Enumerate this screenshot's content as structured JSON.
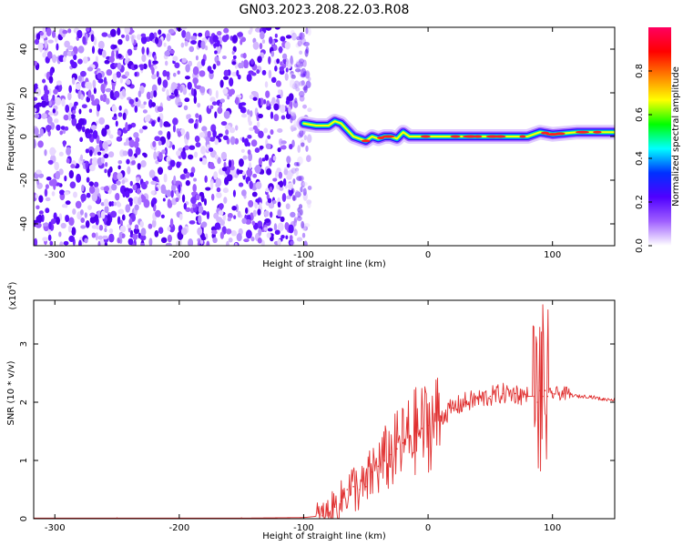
{
  "title": "GN03.2023.208.22.03.R08",
  "chart_data": [
    {
      "type": "heatmap",
      "xlabel": "Height of straight line (km)",
      "ylabel": "Frequency (Hz)",
      "xlim": [
        -317,
        150
      ],
      "ylim": [
        -50,
        50
      ],
      "x_ticks": [
        -300,
        -200,
        -100,
        0,
        100
      ],
      "y_ticks": [
        -40,
        -20,
        0,
        20,
        40
      ],
      "grid": false,
      "colorbar": {
        "label": "Normalized spectral amplitude",
        "range": [
          0,
          1
        ],
        "ticks": [
          "0.0",
          "0.2",
          "0.4",
          "0.6",
          "0.8"
        ],
        "colors": [
          "#ffffff",
          "#a060ff",
          "#5000ff",
          "#0030ff",
          "#00ffff",
          "#00ff00",
          "#ffff00",
          "#ff8000",
          "#ff0000",
          "#ff0060"
        ]
      },
      "noise_region": {
        "x": [
          -317,
          -95
        ],
        "y": [
          -50,
          50
        ]
      },
      "ridge": {
        "x": [
          -100,
          -90,
          -80,
          -75,
          -70,
          -65,
          -60,
          -55,
          -50,
          -45,
          -40,
          -35,
          -30,
          -25,
          -20,
          -15,
          -10,
          0,
          20,
          50,
          80,
          90,
          100,
          120,
          150
        ],
        "y": [
          6,
          5,
          5,
          7,
          6,
          3,
          0,
          -1,
          -2,
          0,
          -1,
          0,
          0,
          -1,
          2,
          0,
          0,
          0,
          0,
          0,
          0,
          2,
          1,
          2,
          2
        ]
      }
    },
    {
      "type": "line",
      "xlabel": "Height of straight line (km)",
      "ylabel": "SNR (10 * v/v)",
      "y_multiplier": "(x10",
      "y_multiplier_exp": "4",
      "y_multiplier_close": ")",
      "xlim": [
        -317,
        150
      ],
      "ylim": [
        0,
        3.75
      ],
      "x_ticks": [
        -300,
        -200,
        -100,
        0,
        100
      ],
      "y_ticks": [
        0,
        1,
        2,
        3
      ],
      "grid": false,
      "series": [
        {
          "color": "#e03030",
          "x": [
            -317,
            -250,
            -200,
            -150,
            -100,
            -85,
            -80,
            -75,
            -70,
            -65,
            -60,
            -55,
            -50,
            -45,
            -40,
            -35,
            -30,
            -25,
            -20,
            -15,
            -10,
            -5,
            0,
            10,
            20,
            30,
            40,
            50,
            60,
            70,
            80,
            85,
            88,
            90,
            92,
            94,
            96,
            100,
            110,
            120,
            130,
            140,
            150
          ],
          "y": [
            0.01,
            0.01,
            0.01,
            0.01,
            0.02,
            0.05,
            0.1,
            0.2,
            0.3,
            0.5,
            0.55,
            0.5,
            0.55,
            0.8,
            0.9,
            1.0,
            1.1,
            1.2,
            1.3,
            1.4,
            1.5,
            1.55,
            1.6,
            1.75,
            1.9,
            2.0,
            2.05,
            2.1,
            2.15,
            2.15,
            2.1,
            2.1,
            2.0,
            2.2,
            2.1,
            2.2,
            2.1,
            2.15,
            2.15,
            2.1,
            2.1,
            2.05,
            2.05
          ]
        }
      ]
    }
  ]
}
